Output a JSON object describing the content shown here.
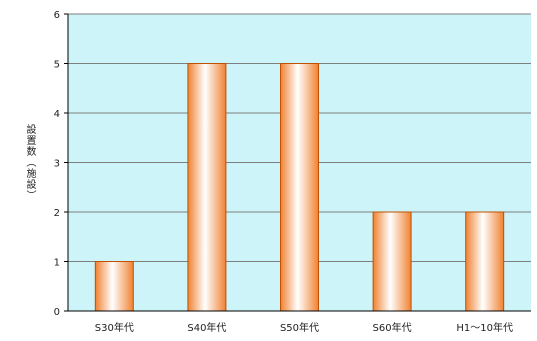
{
  "chart_data": {
    "type": "bar",
    "categories": [
      "S30年代",
      "S40年代",
      "S50年代",
      "S60年代",
      "H1～10年代"
    ],
    "values": [
      1,
      5,
      5,
      2,
      2
    ],
    "title": "",
    "xlabel": "",
    "ylabel": "設置数（施設）",
    "ylim": [
      0,
      6
    ],
    "yticks": [
      0,
      1,
      2,
      3,
      4,
      5,
      6
    ],
    "grid": true,
    "legend": "none",
    "colors": {
      "plot_background": "#cdf4f8",
      "gridline": "#7f7f7f",
      "bar_edge": "#c05000",
      "bar_light": "#ffffff",
      "bar_dark": "#f08232"
    }
  }
}
